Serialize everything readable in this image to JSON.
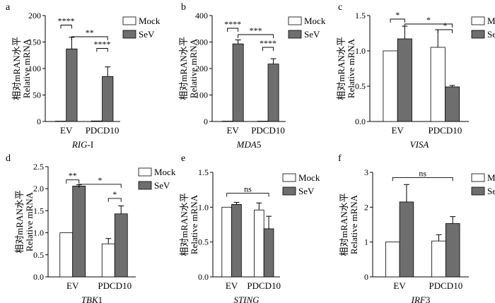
{
  "y_axis_title_cn": "相对mRAN水平",
  "y_axis_title_en": "Relative mRNA",
  "colors": {
    "mock": "#ffffff",
    "sev": "#6e6e6e",
    "stroke": "#000000"
  },
  "chart_data": [
    {
      "panel": "a",
      "type": "bar",
      "title": "RIG-I",
      "title_italic": "RIG",
      "title_plain": "-I",
      "categories": [
        "EV",
        "PDCD10"
      ],
      "legend": [
        "Mock",
        "SeV"
      ],
      "ylim": [
        0,
        200
      ],
      "yticks": [
        0,
        50,
        100,
        150,
        200
      ],
      "series": [
        {
          "name": "Mock",
          "values": [
            0.5,
            1.0
          ],
          "errors": [
            0,
            0
          ]
        },
        {
          "name": "SeV",
          "values": [
            137,
            85
          ],
          "errors": [
            22,
            18
          ]
        }
      ],
      "annotations": [
        {
          "label": "****",
          "from": [
            0,
            0
          ],
          "to": [
            0,
            1
          ],
          "y": 182
        },
        {
          "label": "**",
          "from": [
            0,
            1
          ],
          "to": [
            1,
            1
          ],
          "y": 160
        },
        {
          "label": "****",
          "from": [
            1,
            0
          ],
          "to": [
            1,
            1
          ],
          "y": 138
        }
      ]
    },
    {
      "panel": "b",
      "type": "bar",
      "title": "MDA5",
      "title_italic": "MDA",
      "title_plain": "5",
      "categories": [
        "EV",
        "PDCD10"
      ],
      "legend": [
        "Mock",
        "SeV"
      ],
      "ylim": [
        0,
        400
      ],
      "yticks": [
        0,
        100,
        200,
        300,
        400
      ],
      "series": [
        {
          "name": "Mock",
          "values": [
            1,
            1
          ],
          "errors": [
            0,
            0
          ]
        },
        {
          "name": "SeV",
          "values": [
            293,
            217
          ],
          "errors": [
            15,
            20
          ]
        }
      ],
      "annotations": [
        {
          "label": "****",
          "from": [
            0,
            0
          ],
          "to": [
            0,
            1
          ],
          "y": 352
        },
        {
          "label": "***",
          "from": [
            0,
            1
          ],
          "to": [
            1,
            1
          ],
          "y": 328
        },
        {
          "label": "****",
          "from": [
            1,
            0
          ],
          "to": [
            1,
            1
          ],
          "y": 280
        }
      ]
    },
    {
      "panel": "c",
      "type": "bar",
      "title": "VISA",
      "title_italic": "VISA",
      "title_plain": "",
      "categories": [
        "EV",
        "PDCD10"
      ],
      "legend": [
        "Mock",
        "SeV"
      ],
      "ylim": [
        0,
        1.5
      ],
      "yticks": [
        0.0,
        0.5,
        1.0,
        1.5
      ],
      "series": [
        {
          "name": "Mock",
          "values": [
            1.0,
            1.05
          ],
          "errors": [
            0,
            0.25
          ]
        },
        {
          "name": "SeV",
          "values": [
            1.17,
            0.49
          ],
          "errors": [
            0.18,
            0.02
          ]
        }
      ],
      "annotations": [
        {
          "label": "*",
          "from": [
            0,
            0
          ],
          "to": [
            0,
            1
          ],
          "y": 1.45
        },
        {
          "label": "*",
          "from": [
            0,
            1
          ],
          "to": [
            1,
            1
          ],
          "y": 1.38
        },
        {
          "label": "*",
          "from": [
            1,
            0
          ],
          "to": [
            1,
            1
          ],
          "y": 1.3
        }
      ]
    },
    {
      "panel": "d",
      "type": "bar",
      "title": "TBK1",
      "title_italic": "TBK",
      "title_plain": "1",
      "categories": [
        "EV",
        "PDCD10"
      ],
      "legend": [
        "Mock",
        "SeV"
      ],
      "ylim": [
        0,
        2.5
      ],
      "yticks": [
        0.0,
        0.5,
        1.0,
        1.5,
        2.0,
        2.5
      ],
      "series": [
        {
          "name": "Mock",
          "values": [
            1.0,
            0.75
          ],
          "errors": [
            0,
            0.12
          ]
        },
        {
          "name": "SeV",
          "values": [
            2.06,
            1.43
          ],
          "errors": [
            0.03,
            0.18
          ]
        }
      ],
      "annotations": [
        {
          "label": "**",
          "from": [
            0,
            0
          ],
          "to": [
            0,
            1
          ],
          "y": 2.2
        },
        {
          "label": "*",
          "from": [
            0,
            1
          ],
          "to": [
            1,
            1
          ],
          "y": 2.1
        },
        {
          "label": "*",
          "from": [
            1,
            0
          ],
          "to": [
            1,
            1
          ],
          "y": 1.78
        }
      ]
    },
    {
      "panel": "e",
      "type": "bar",
      "title": "STING",
      "title_italic": "STING",
      "title_plain": "",
      "categories": [
        "EV",
        "PDCD10"
      ],
      "legend": [
        "Mock",
        "SeV"
      ],
      "ylim": [
        0,
        1.5
      ],
      "yticks": [
        0.0,
        0.5,
        1.0,
        1.5
      ],
      "series": [
        {
          "name": "Mock",
          "values": [
            1.0,
            0.96
          ],
          "errors": [
            0,
            0.1
          ]
        },
        {
          "name": "SeV",
          "values": [
            1.04,
            0.69
          ],
          "errors": [
            0.03,
            0.18
          ]
        }
      ],
      "annotations": [
        {
          "label": "ns",
          "from": [
            0,
            0
          ],
          "to": [
            1,
            1
          ],
          "y": 1.2
        }
      ]
    },
    {
      "panel": "f",
      "type": "bar",
      "title": "IRF3",
      "title_italic": "IRF",
      "title_plain": "3",
      "categories": [
        "EV",
        "PDCD10"
      ],
      "legend": [
        "Mock",
        "SeV"
      ],
      "ylim": [
        0,
        3
      ],
      "yticks": [
        0,
        1,
        2,
        3
      ],
      "series": [
        {
          "name": "Mock",
          "values": [
            1.0,
            1.03
          ],
          "errors": [
            0,
            0.18
          ]
        },
        {
          "name": "SeV",
          "values": [
            2.15,
            1.53
          ],
          "errors": [
            0.5,
            0.2
          ]
        }
      ],
      "annotations": [
        {
          "label": "ns",
          "from": [
            0,
            0
          ],
          "to": [
            1,
            1
          ],
          "y": 2.85
        }
      ]
    }
  ]
}
